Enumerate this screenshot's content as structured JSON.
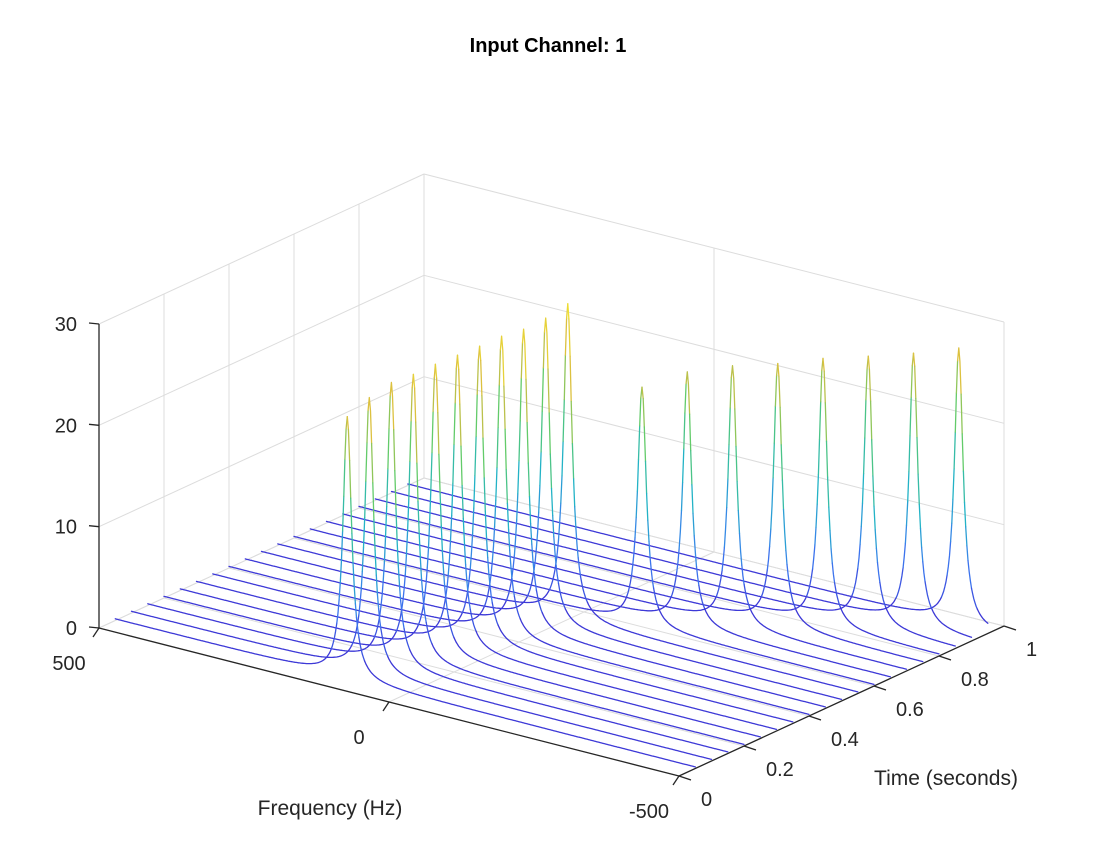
{
  "chart_data": {
    "type": "waterfall",
    "title": "Input Channel: 1",
    "xlabel": "Frequency (Hz)",
    "ylabel": "Time (seconds)",
    "zlabel": "",
    "freq_ticks": [
      "500",
      "0",
      "-500"
    ],
    "time_ticks": [
      "0",
      "0.2",
      "0.4",
      "0.6",
      "0.8",
      "1"
    ],
    "z_ticks": [
      "0",
      "10",
      "20",
      "30"
    ],
    "freq_range": [
      -500,
      500
    ],
    "time_range": [
      0,
      1
    ],
    "z_range": [
      0,
      30
    ],
    "grid": true,
    "colormap": [
      "#3d2bd1",
      "#3c7cf0",
      "#22b5c4",
      "#5fcb6b",
      "#d9bd41",
      "#f4e730"
    ],
    "traces": [
      {
        "time": 0.05,
        "peak_freq": 100,
        "peak": 25.8
      },
      {
        "time": 0.1,
        "peak_freq": 90,
        "peak": 27.1
      },
      {
        "time": 0.15,
        "peak_freq": 80,
        "peak": 28.0
      },
      {
        "time": 0.2,
        "peak_freq": 70,
        "peak": 28.2
      },
      {
        "time": 0.25,
        "peak_freq": 60,
        "peak": 28.6
      },
      {
        "time": 0.3,
        "peak_freq": 50,
        "peak": 28.9
      },
      {
        "time": 0.35,
        "peak_freq": 40,
        "peak": 29.2
      },
      {
        "time": 0.4,
        "peak_freq": 30,
        "peak": 29.6
      },
      {
        "time": 0.45,
        "peak_freq": 20,
        "peak": 29.7
      },
      {
        "time": 0.5,
        "peak_freq": 10,
        "peak": 30.2
      },
      {
        "time": 0.55,
        "peak_freq": 0,
        "peak": 31.0
      },
      {
        "time": 0.6,
        "peak_freq": -100,
        "peak": 23.5
      },
      {
        "time": 0.65,
        "peak_freq": -150,
        "peak": 25.0
      },
      {
        "time": 0.7,
        "peak_freq": -200,
        "peak": 25.6
      },
      {
        "time": 0.75,
        "peak_freq": -250,
        "peak": 25.8
      },
      {
        "time": 0.8,
        "peak_freq": -300,
        "peak": 26.3
      },
      {
        "time": 0.85,
        "peak_freq": -350,
        "peak": 26.5
      },
      {
        "time": 0.9,
        "peak_freq": -400,
        "peak": 26.8
      },
      {
        "time": 0.95,
        "peak_freq": -450,
        "peak": 27.3
      }
    ]
  }
}
